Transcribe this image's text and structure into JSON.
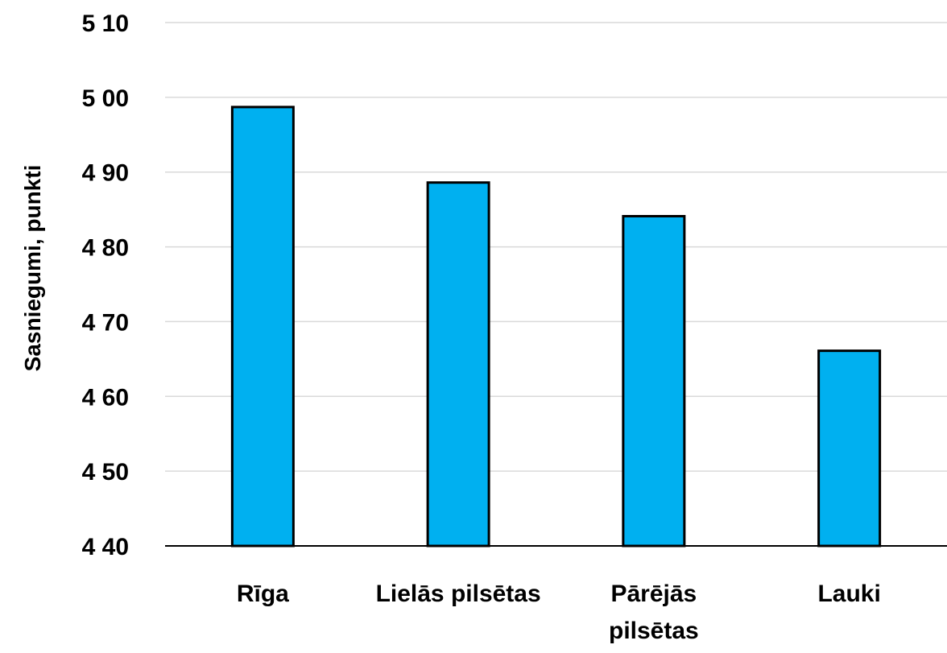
{
  "chart_data": {
    "type": "bar",
    "title": "",
    "xlabel": "",
    "ylabel": "Sasniegumi, punkti",
    "categories": [
      "Rīga",
      "Lielās pilsētas",
      "Pārējās pilsētas",
      "Lauki"
    ],
    "category_lines": [
      [
        "Rīga"
      ],
      [
        "Lielās pilsētas"
      ],
      [
        "Pārējās",
        "pilsētas"
      ],
      [
        "Lauki"
      ]
    ],
    "values": [
      498.7,
      488.6,
      484.1,
      466.1
    ],
    "ylim": [
      440,
      510
    ],
    "yticks": [
      440,
      450,
      460,
      470,
      480,
      490,
      500,
      510
    ],
    "ytick_labels": [
      "4 40",
      "4 50",
      "4 60",
      "4 70",
      "4 80",
      "4 90",
      "5 00",
      "5 10"
    ],
    "grid": true,
    "legend": "none",
    "colors": {
      "bar_fill": "#00B0F0",
      "bar_stroke": "#000000",
      "grid": "#D9D9D9",
      "axis": "#000000"
    }
  }
}
